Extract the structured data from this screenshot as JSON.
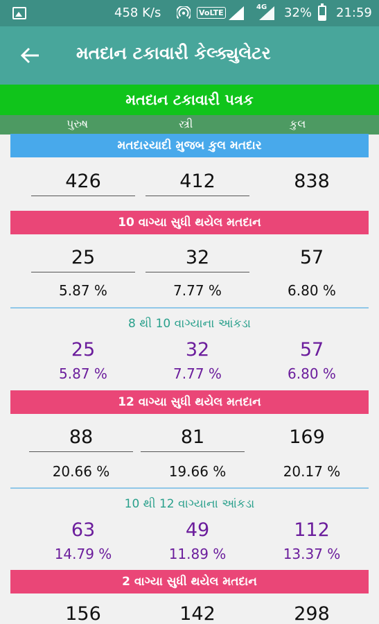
{
  "status_bar": {
    "speed": "458 K/s",
    "volte": "VoLTE",
    "network": "4G",
    "battery": "32%",
    "time": "21:59"
  },
  "app_bar": {
    "title": "મતદાન ટકાવારી કેલ્ક્યુલેટર"
  },
  "sheet": {
    "title": "મતદાન ટકાવારી પત્રક",
    "columns": [
      "પુરુષ",
      "સ્ત્રી",
      "કુલ"
    ]
  },
  "total_voters": {
    "label": "મતદારયાદી મુજબ કુલ મતદાર",
    "values": [
      "426",
      "412",
      "838"
    ]
  },
  "till_10": {
    "label": "10 વાગ્યા સુધી થયેલ મતદાન",
    "values": [
      "25",
      "32",
      "57"
    ],
    "percents": [
      "5.87 %",
      "7.77 %",
      "6.80 %"
    ]
  },
  "range_8_10": {
    "label": "8 થી 10 વાગ્યાના આંકડા",
    "values": [
      "25",
      "32",
      "57"
    ],
    "percents": [
      "5.87 %",
      "7.77 %",
      "6.80 %"
    ]
  },
  "till_12": {
    "label": "12 વાગ્યા સુધી થયેલ મતદાન",
    "values": [
      "88",
      "81",
      "169"
    ],
    "percents": [
      "20.66 %",
      "19.66 %",
      "20.17 %"
    ]
  },
  "range_10_12": {
    "label": "10 થી 12 વાગ્યાના આંકડા",
    "values": [
      "63",
      "49",
      "112"
    ],
    "percents": [
      "14.79 %",
      "11.89 %",
      "13.37 %"
    ]
  },
  "till_2": {
    "label": "2 વાગ્યા સુધી થયેલ મતદાન",
    "values": [
      "156",
      "142",
      "298"
    ]
  },
  "colors": {
    "app_bar": "#48a69b",
    "status_bar": "#3d8f85",
    "green_header": "#10c41b",
    "blue_band": "#48a9eb",
    "pink_band": "#ea4677",
    "purple_text": "#6b1d9c",
    "teal_text": "#2aa08c"
  }
}
